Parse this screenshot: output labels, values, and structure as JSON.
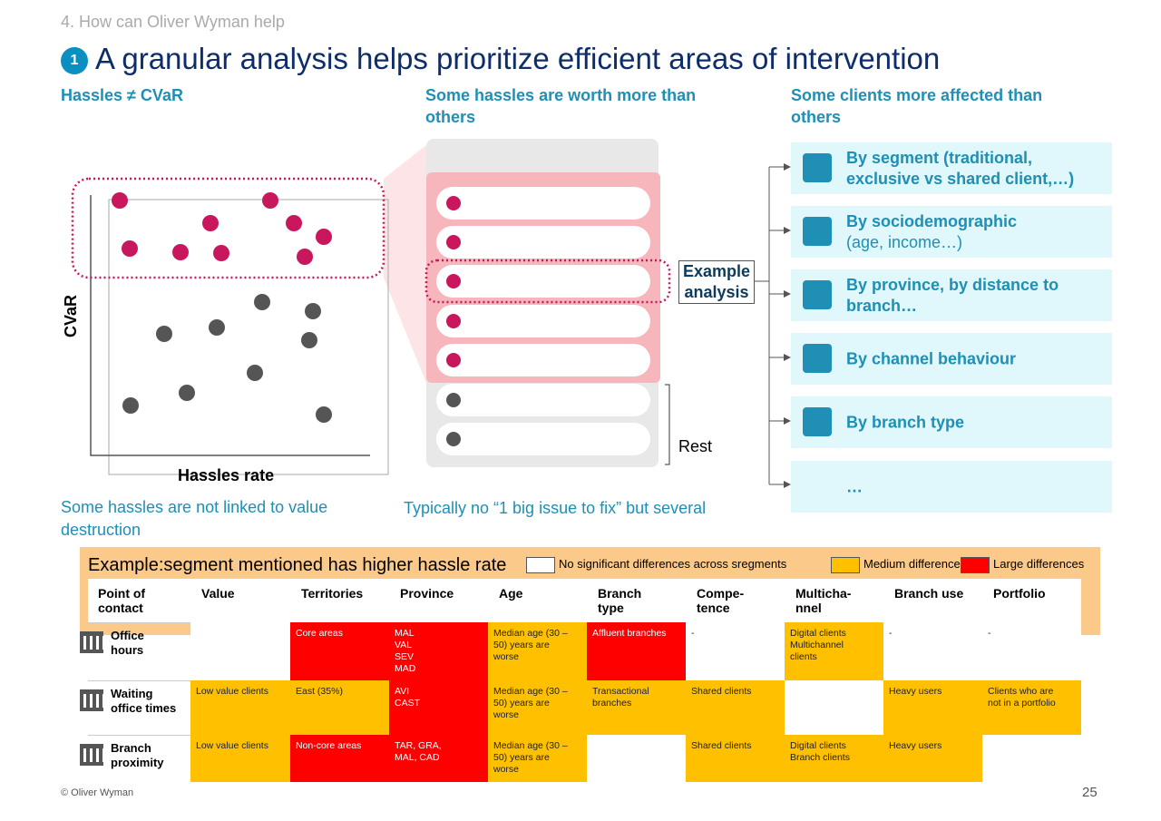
{
  "section": "4. How can Oliver Wyman help",
  "badge": "1",
  "title": "A granular analysis helps prioritize efficient areas of intervention",
  "columns": [
    {
      "heading": "Hassles ≠ CVaR",
      "footnote": "Some hassles are not linked to value destruction"
    },
    {
      "heading": "Some hassles are worth more than others",
      "footnote": "Typically no “1  big issue to fix” but several"
    },
    {
      "heading": "Some clients more affected than others"
    }
  ],
  "scatter": {
    "y_label": "CVaR",
    "x_label": "Hassles rate"
  },
  "list": {
    "example_label": "Example analysis",
    "rest_label": "Rest"
  },
  "breakdowns": [
    {
      "text": "By segment (traditional, exclusive vs shared client,…)"
    },
    {
      "text": "By sociodemographic",
      "note": "(age, income…)"
    },
    {
      "text": "By province, by distance to branch…"
    },
    {
      "text": "By channel behaviour"
    },
    {
      "text": "By branch type"
    },
    {
      "text": "…"
    }
  ],
  "table": {
    "title": "Example:segment mentioned has higher hassle rate",
    "legend": [
      {
        "label": "No significant differences across sregments",
        "color": "#ffffff"
      },
      {
        "label": "Medium differences",
        "color": "#ffc000"
      },
      {
        "label": "Large differences",
        "color": "#ff0000"
      }
    ],
    "headers": [
      "Point of\ncontact",
      "Value",
      "Territories",
      "Province",
      "Age",
      "Branch\ntype",
      "Compe-\ntence",
      "Multicha-\nnnel",
      "Branch use",
      "Portfolio"
    ],
    "rows": [
      {
        "label": "Office\nhours",
        "cells": [
          {
            "level": 0
          },
          {
            "text": "Core areas",
            "level": 2
          },
          {
            "text": "MAL\nVAL\nSEV\nMAD",
            "level": 2
          },
          {
            "text": "Median age (30 –\n50) years are\nworse",
            "level": 1
          },
          {
            "text": "Affluent branches",
            "level": 2
          },
          {
            "text": "-",
            "level": 0
          },
          {
            "text": "Digital clients\nMultichannel\nclients",
            "level": 1
          },
          {
            "text": "-",
            "level": 0
          },
          {
            "text": "-",
            "level": 0
          }
        ]
      },
      {
        "label": "Waiting\noffice times",
        "cells": [
          {
            "text": "Low value clients",
            "level": 1
          },
          {
            "text": "East (35%)",
            "level": 1
          },
          {
            "text": "AVI\nCAST",
            "level": 2
          },
          {
            "text": "Median age (30 –\n50) years are\nworse",
            "level": 1
          },
          {
            "text": "Transactional\nbranches",
            "level": 1
          },
          {
            "text": "Shared clients",
            "level": 1
          },
          {
            "level": 0
          },
          {
            "text": "Heavy users",
            "level": 1
          },
          {
            "text": "Clients who are\nnot in a portfolio",
            "level": 1
          }
        ]
      },
      {
        "label": "Branch\nproximity",
        "cells": [
          {
            "text": "Low value clients",
            "level": 1
          },
          {
            "text": "Non-core areas",
            "level": 2
          },
          {
            "text": "TAR, GRA,\nMAL, CAD",
            "level": 2
          },
          {
            "text": "Median age (30 –\n50) years are\nworse",
            "level": 1
          },
          {
            "level": 0
          },
          {
            "text": "Shared clients",
            "level": 1
          },
          {
            "text": "Digital clients\nBranch clients",
            "level": 1
          },
          {
            "text": "Heavy users",
            "level": 1
          },
          {
            "level": 0
          }
        ]
      }
    ]
  },
  "footer": {
    "copyright": "© Oliver Wyman",
    "page": "25"
  }
}
